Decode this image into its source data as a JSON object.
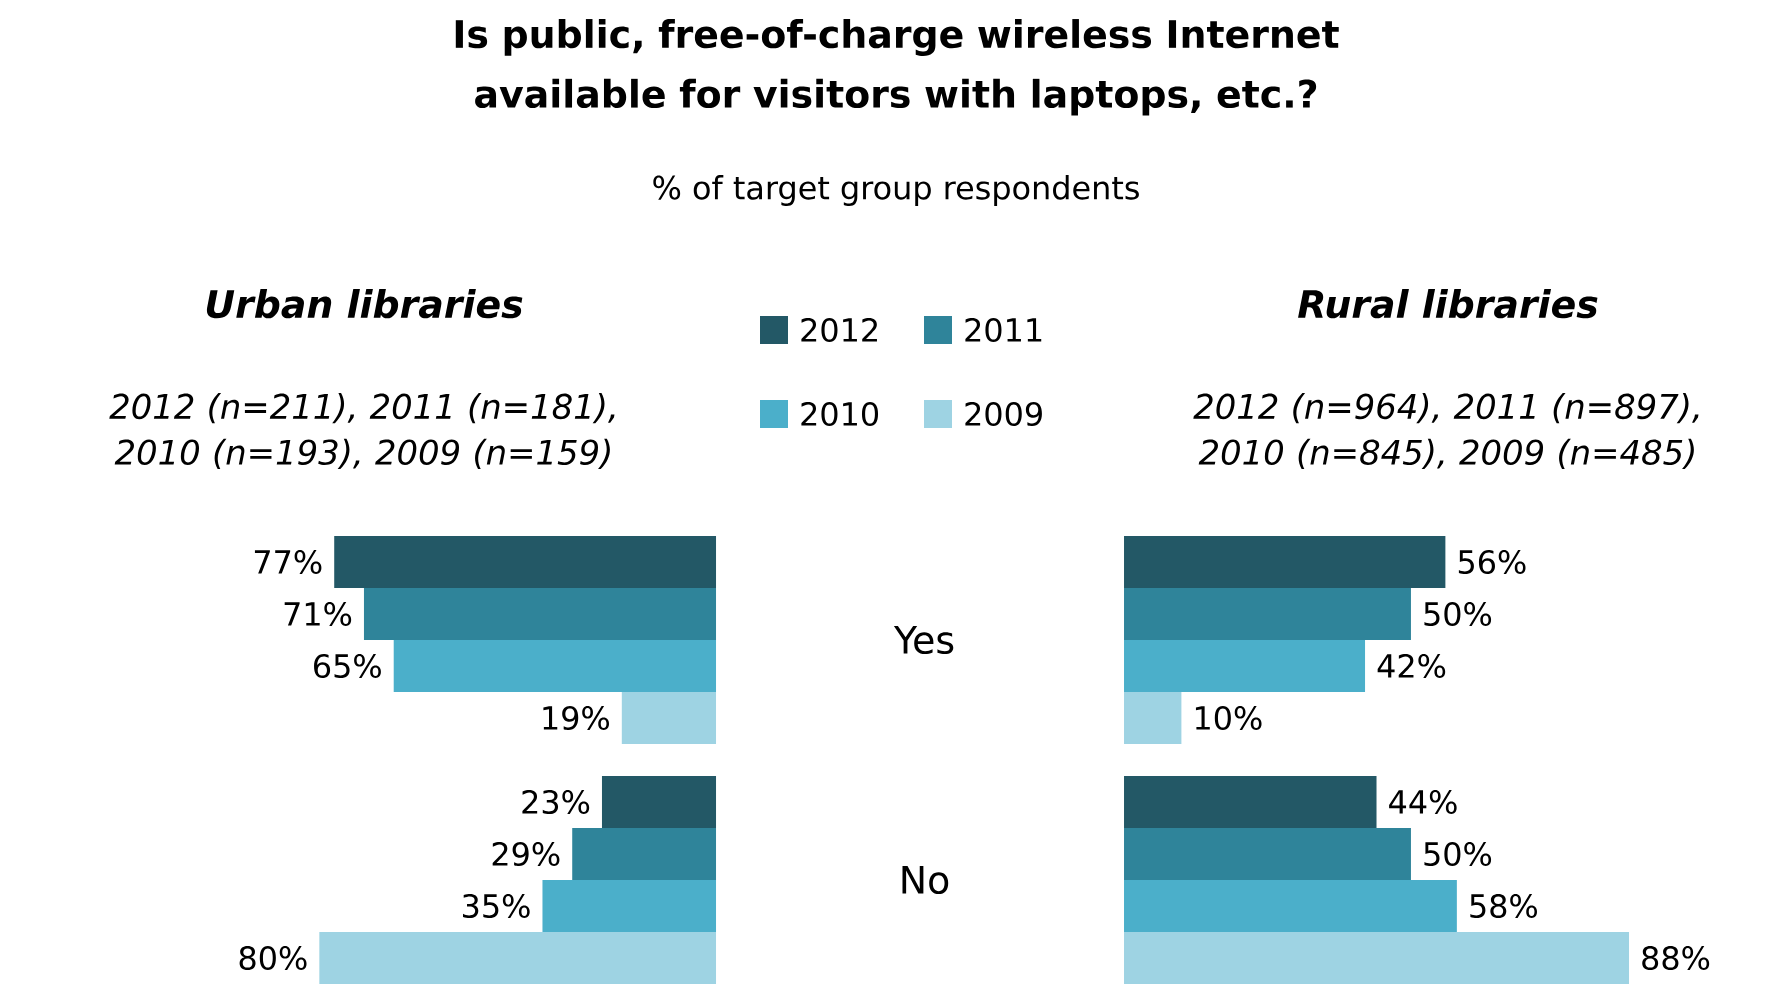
{
  "chart_data": [
    {
      "type": "other",
      "title": "Is public, free-of-charge wireless Internet available for visitors with laptops, etc.?",
      "subtitle": "% of target group respondents"
    },
    {
      "type": "bar",
      "orientation": "horizontal",
      "title": "Urban libraries",
      "subtitle": "2012 (n=211), 2011 (n=181), 2010 (n=193), 2009 (n=159)",
      "categories": [
        "Yes",
        "No"
      ],
      "legend": "right",
      "series": [
        {
          "name": "2012",
          "color": "#235866",
          "values": [
            77,
            23
          ],
          "value_labels": [
            "77%",
            "23%"
          ]
        },
        {
          "name": "2011",
          "color": "#2f849a",
          "values": [
            71,
            29
          ],
          "value_labels": [
            "71%",
            "29%"
          ]
        },
        {
          "name": "2010",
          "color": "#4bafca",
          "values": [
            65,
            35
          ],
          "value_labels": [
            "65%",
            "35%"
          ]
        },
        {
          "name": "2009",
          "color": "#9ed3e3",
          "values": [
            19,
            80
          ],
          "value_labels": [
            "19%",
            "80%"
          ]
        }
      ]
    },
    {
      "type": "bar",
      "orientation": "horizontal",
      "title": "Rural libraries",
      "subtitle": "2012 (n=964), 2011 (n=897), 2010 (n=845), 2009 (n=485)",
      "categories": [
        null,
        null
      ],
      "series": [
        {
          "color": "#235866",
          "values": [
            56,
            44
          ],
          "value_labels": [
            "56%",
            "44%"
          ]
        },
        {
          "color": "#2f849a",
          "values": [
            50,
            50
          ],
          "value_labels": [
            "50%",
            "50%"
          ]
        },
        {
          "color": "#4bafca",
          "values": [
            42,
            58
          ],
          "value_labels": [
            "42%",
            "58%"
          ]
        },
        {
          "color": "#9ed3e3",
          "values": [
            10,
            88
          ],
          "value_labels": [
            "10%",
            "88%"
          ]
        }
      ]
    }
  ]
}
